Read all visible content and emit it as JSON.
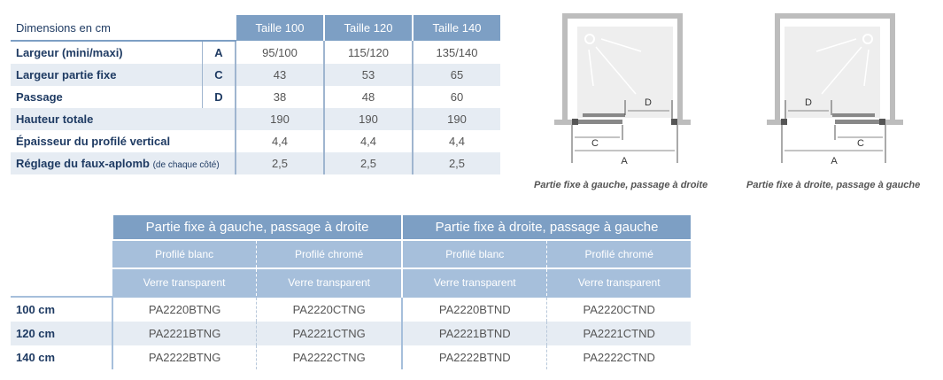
{
  "dimensions": {
    "label": "Dimensions en cm",
    "columns": [
      "Taille 100",
      "Taille 120",
      "Taille 140"
    ],
    "rows": [
      {
        "name": "Largeur (mini/maxi)",
        "note": "",
        "letter": "A",
        "values": [
          "95/100",
          "115/120",
          "135/140"
        ]
      },
      {
        "name": "Largeur partie fixe",
        "note": "",
        "letter": "C",
        "values": [
          "43",
          "53",
          "65"
        ]
      },
      {
        "name": "Passage",
        "note": "",
        "letter": "D",
        "values": [
          "38",
          "48",
          "60"
        ]
      },
      {
        "name": "Hauteur totale",
        "note": "",
        "letter": "",
        "values": [
          "190",
          "190",
          "190"
        ]
      },
      {
        "name": "Épaisseur du profilé vertical",
        "note": "",
        "letter": "",
        "values": [
          "4,4",
          "4,4",
          "4,4"
        ]
      },
      {
        "name": "Réglage du faux-aplomb",
        "note": "(de chaque côté)",
        "letter": "",
        "values": [
          "2,5",
          "2,5",
          "2,5"
        ]
      }
    ]
  },
  "diagrams": [
    {
      "caption": "Partie fixe à gauche, passage à droite",
      "labels": {
        "a": "A",
        "c": "C",
        "d": "D"
      }
    },
    {
      "caption": "Partie fixe à droite, passage à gauche",
      "labels": {
        "a": "A",
        "c": "C",
        "d": "D"
      }
    }
  ],
  "references": {
    "groups": [
      "Partie fixe à gauche, passage à droite",
      "Partie fixe à droite, passage à gauche"
    ],
    "profiles": [
      "Profilé blanc",
      "Profilé chromé",
      "Profilé blanc",
      "Profilé chromé"
    ],
    "glass": [
      "Verre transparent",
      "Verre transparent",
      "Verre transparent",
      "Verre transparent"
    ],
    "rows": [
      {
        "size": "100 cm",
        "codes": [
          "PA2220BTNG",
          "PA2220CTNG",
          "PA2220BTND",
          "PA2220CTND"
        ]
      },
      {
        "size": "120 cm",
        "codes": [
          "PA2221BTNG",
          "PA2221CTNG",
          "PA2221BTND",
          "PA2221CTND"
        ]
      },
      {
        "size": "140 cm",
        "codes": [
          "PA2222BTNG",
          "PA2222CTNG",
          "PA2222BTND",
          "PA2222CTND"
        ]
      }
    ]
  },
  "colors": {
    "header": "#7d9fc4",
    "subheader": "#a6bfdb",
    "row_shade": "#e6ecf3",
    "text": "#1f3b63"
  }
}
